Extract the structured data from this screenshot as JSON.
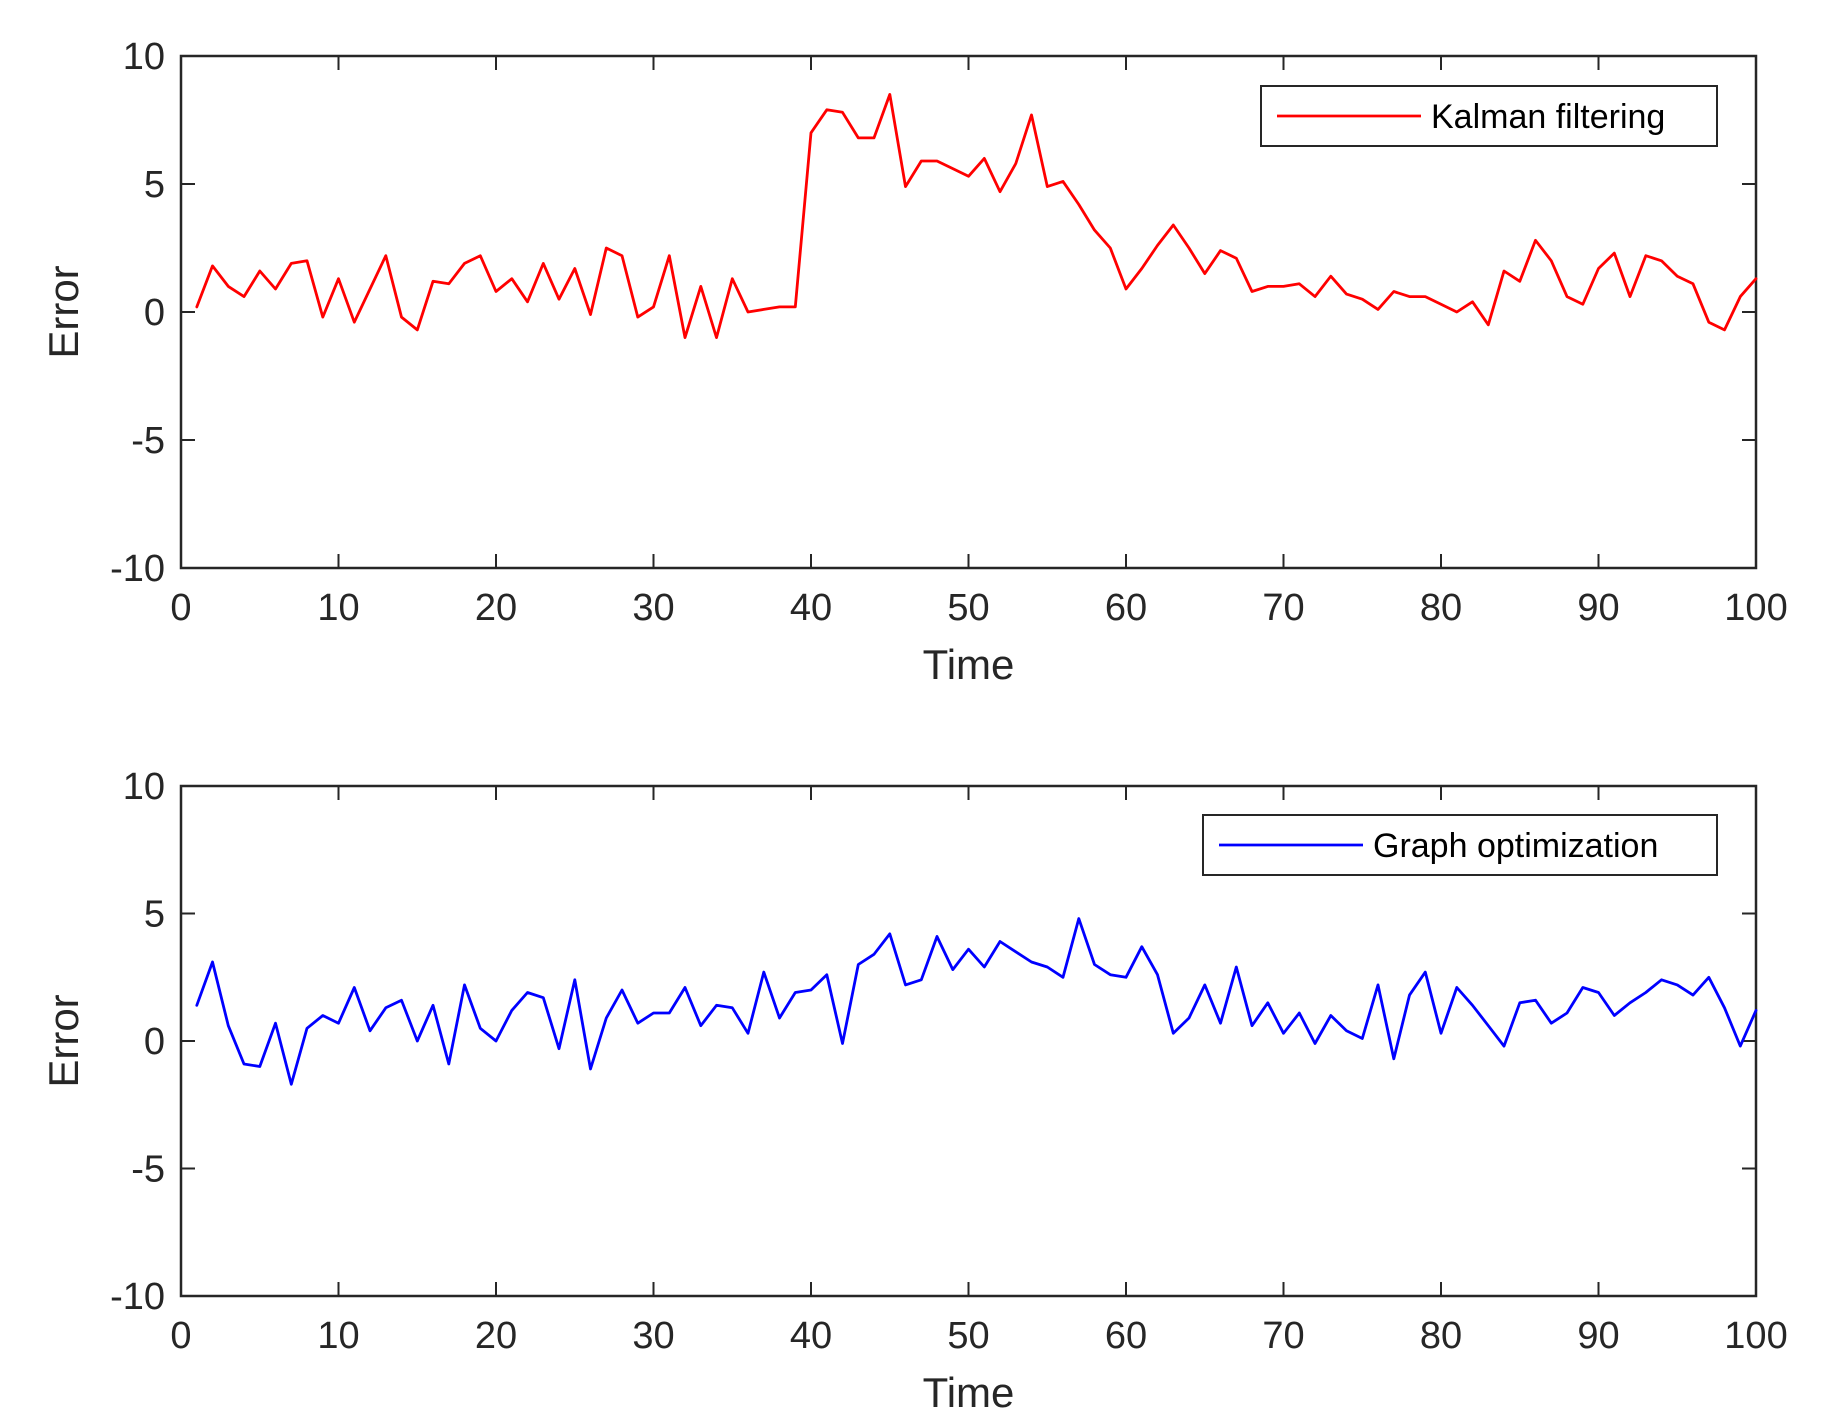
{
  "chart_data": [
    {
      "type": "line",
      "xlabel": "Time",
      "ylabel": "Error",
      "xlim": [
        0,
        100
      ],
      "ylim": [
        -10,
        10
      ],
      "xticks": [
        "0",
        "10",
        "20",
        "30",
        "40",
        "50",
        "60",
        "70",
        "80",
        "90",
        "100"
      ],
      "yticks": [
        "-10",
        "-5",
        "0",
        "5",
        "10"
      ],
      "grid": false,
      "legend_position": "top-right",
      "series": [
        {
          "name": "Kalman filtering",
          "color": "#ff0000",
          "x": [
            1,
            2,
            3,
            4,
            5,
            6,
            7,
            8,
            9,
            10,
            11,
            12,
            13,
            14,
            15,
            16,
            17,
            18,
            19,
            20,
            21,
            22,
            23,
            24,
            25,
            26,
            27,
            28,
            29,
            30,
            31,
            32,
            33,
            34,
            35,
            36,
            37,
            38,
            39,
            40,
            41,
            42,
            43,
            44,
            45,
            46,
            47,
            48,
            49,
            50,
            51,
            52,
            53,
            54,
            55,
            56,
            57,
            58,
            59,
            60,
            61,
            62,
            63,
            64,
            65,
            66,
            67,
            68,
            69,
            70,
            71,
            72,
            73,
            74,
            75,
            76,
            77,
            78,
            79,
            80,
            81,
            82,
            83,
            84,
            85,
            86,
            87,
            88,
            89,
            90,
            91,
            92,
            93,
            94,
            95,
            96,
            97,
            98,
            99,
            100
          ],
          "values": [
            0.2,
            1.8,
            1.0,
            0.6,
            1.6,
            0.9,
            1.9,
            2.0,
            -0.2,
            1.3,
            -0.4,
            0.9,
            2.2,
            -0.2,
            -0.7,
            1.2,
            1.1,
            1.9,
            2.2,
            0.8,
            1.3,
            0.4,
            1.9,
            0.5,
            1.7,
            -0.1,
            2.5,
            2.2,
            -0.2,
            0.2,
            2.2,
            -1.0,
            1.0,
            -1.0,
            1.3,
            0.0,
            0.1,
            0.2,
            0.2,
            7.0,
            7.9,
            7.8,
            6.8,
            6.8,
            8.5,
            4.9,
            5.9,
            5.9,
            5.6,
            5.3,
            6.0,
            4.7,
            5.8,
            7.7,
            4.9,
            5.1,
            4.2,
            3.2,
            2.5,
            0.9,
            1.7,
            2.6,
            3.4,
            2.5,
            1.5,
            2.4,
            2.1,
            0.8,
            1.0,
            1.0,
            1.1,
            0.6,
            1.4,
            0.7,
            0.5,
            0.1,
            0.8,
            0.6,
            0.6,
            0.3,
            0.0,
            0.4,
            -0.5,
            1.6,
            1.2,
            2.8,
            2.0,
            0.6,
            0.3,
            1.7,
            2.3,
            0.6,
            2.2,
            2.0,
            1.4,
            1.1,
            -0.4,
            -0.7,
            0.6,
            1.3
          ]
        }
      ]
    },
    {
      "type": "line",
      "xlabel": "Time",
      "ylabel": "Error",
      "xlim": [
        0,
        100
      ],
      "ylim": [
        -10,
        10
      ],
      "xticks": [
        "0",
        "10",
        "20",
        "30",
        "40",
        "50",
        "60",
        "70",
        "80",
        "90",
        "100"
      ],
      "yticks": [
        "-10",
        "-5",
        "0",
        "5",
        "10"
      ],
      "grid": false,
      "legend_position": "top-right",
      "series": [
        {
          "name": "Graph optimization",
          "color": "#0000ff",
          "x": [
            1,
            2,
            3,
            4,
            5,
            6,
            7,
            8,
            9,
            10,
            11,
            12,
            13,
            14,
            15,
            16,
            17,
            18,
            19,
            20,
            21,
            22,
            23,
            24,
            25,
            26,
            27,
            28,
            29,
            30,
            31,
            32,
            33,
            34,
            35,
            36,
            37,
            38,
            39,
            40,
            41,
            42,
            43,
            44,
            45,
            46,
            47,
            48,
            49,
            50,
            51,
            52,
            53,
            54,
            55,
            56,
            57,
            58,
            59,
            60,
            61,
            62,
            63,
            64,
            65,
            66,
            67,
            68,
            69,
            70,
            71,
            72,
            73,
            74,
            75,
            76,
            77,
            78,
            79,
            80,
            81,
            82,
            83,
            84,
            85,
            86,
            87,
            88,
            89,
            90,
            91,
            92,
            93,
            94,
            95,
            96,
            97,
            98,
            99,
            100
          ],
          "values": [
            1.4,
            3.1,
            0.6,
            -0.9,
            -1.0,
            0.7,
            -1.7,
            0.5,
            1.0,
            0.7,
            2.1,
            0.4,
            1.3,
            1.6,
            0.0,
            1.4,
            -0.9,
            2.2,
            0.5,
            0.0,
            1.2,
            1.9,
            1.7,
            -0.3,
            2.4,
            -1.1,
            0.9,
            2.0,
            0.7,
            1.1,
            1.1,
            2.1,
            0.6,
            1.4,
            1.3,
            0.3,
            2.7,
            0.9,
            1.9,
            2.0,
            2.6,
            -0.1,
            3.0,
            3.4,
            4.2,
            2.2,
            2.4,
            4.1,
            2.8,
            3.6,
            2.9,
            3.9,
            3.5,
            3.1,
            2.9,
            2.5,
            4.8,
            3.0,
            2.6,
            2.5,
            3.7,
            2.6,
            0.3,
            0.9,
            2.2,
            0.7,
            2.9,
            0.6,
            1.5,
            0.3,
            1.1,
            -0.1,
            1.0,
            0.4,
            0.1,
            2.2,
            -0.7,
            1.8,
            2.7,
            0.3,
            2.1,
            1.4,
            0.6,
            -0.2,
            1.5,
            1.6,
            0.7,
            1.1,
            2.1,
            1.9,
            1.0,
            1.5,
            1.9,
            2.4,
            2.2,
            1.8,
            2.5,
            1.3,
            -0.2,
            1.2
          ]
        }
      ]
    }
  ]
}
